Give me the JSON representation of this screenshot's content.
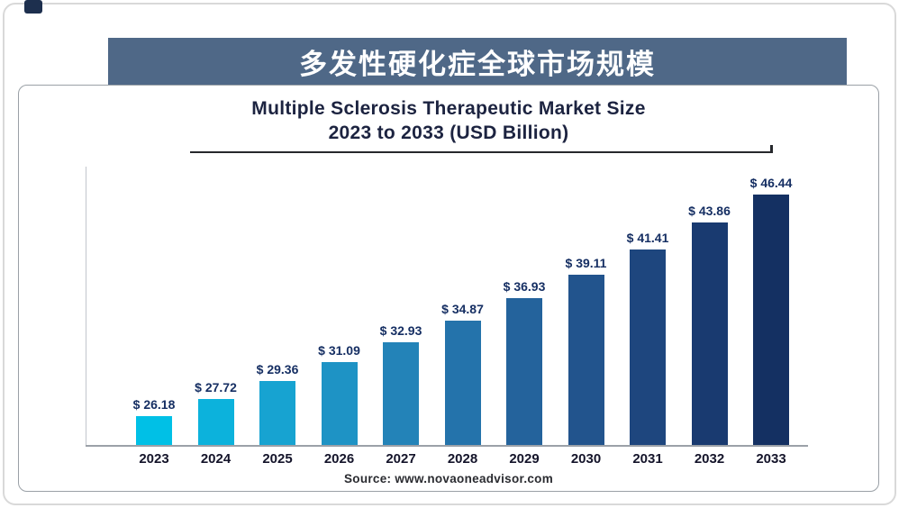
{
  "page": {
    "banner_title": "多发性硬化症全球市场规模"
  },
  "chart_data": {
    "type": "bar",
    "title": "Multiple Sclerosis Therapeutic Market Size",
    "subtitle": "2023 to 2033 (USD Billion)",
    "categories": [
      "2023",
      "2024",
      "2025",
      "2026",
      "2027",
      "2028",
      "2029",
      "2030",
      "2031",
      "2032",
      "2033"
    ],
    "values": [
      26.18,
      27.72,
      29.36,
      31.09,
      32.93,
      34.87,
      36.93,
      39.11,
      41.41,
      43.86,
      46.44
    ],
    "value_labels": [
      "$ 26.18",
      "$ 27.72",
      "$ 29.36",
      "$ 31.09",
      "$ 32.93",
      "$ 34.87",
      "$ 36.93",
      "$ 39.11",
      "$ 41.41",
      "$ 43.86",
      "$ 46.44"
    ],
    "value_prefix": "$ ",
    "bar_colors": [
      "#00c0e6",
      "#0cb2dc",
      "#17a3d1",
      "#1e93c5",
      "#2383b8",
      "#2473ab",
      "#24639c",
      "#22548d",
      "#1e467e",
      "#193a70",
      "#143062"
    ],
    "xlabel": "",
    "ylabel": "",
    "ylim": [
      23.5,
      46.44
    ],
    "grid": false,
    "legend": "none",
    "source": "Source: www.novaoneadvisor.com"
  },
  "colors": {
    "banner_bg": "#4f6887",
    "banner_text": "#ffffff",
    "title_text": "#1c2340",
    "value_label_text": "#162f63",
    "axis_line": "#9ba1a8"
  }
}
